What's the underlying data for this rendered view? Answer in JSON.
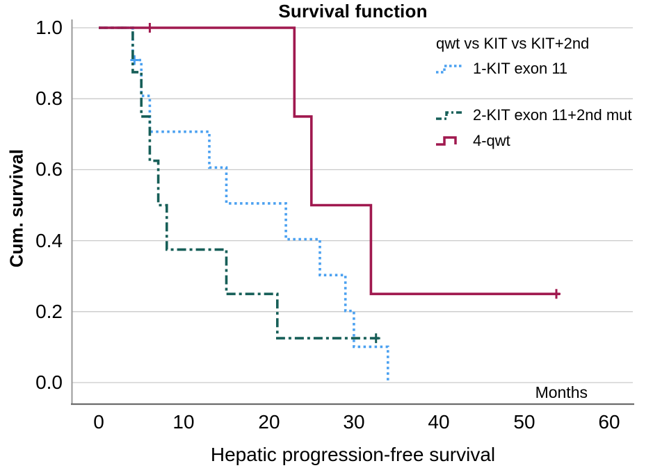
{
  "title": "Survival function",
  "axes": {
    "y_label": "Cum. survival",
    "x_label": "Hepatic progression-free survival",
    "x_unit_label": "Months",
    "y_ticks": [
      "1.0",
      "0.8",
      "0.6",
      "0.4",
      "0.2",
      "0.0"
    ],
    "x_ticks": [
      "0",
      "10",
      "20",
      "30",
      "40",
      "50",
      "60"
    ]
  },
  "legend": {
    "title": "qwt vs KIT vs KIT+2nd",
    "items": [
      "1-KIT exon 11",
      "2-KIT exon 11+2nd mut",
      "4-qwt"
    ]
  },
  "colors": {
    "series_kit_exon11": "#4aa0f0",
    "series_kit_exon11_2nd": "#175f58",
    "series_qwt": "#a0194f",
    "gridline": "#c9c9c9",
    "y_spine": "#9a9a9a",
    "x_spine": "#6b6b6b"
  },
  "chart_data": {
    "type": "line",
    "subtype": "kaplan-meier-step",
    "title": "Survival function",
    "xlabel": "Hepatic progression-free survival",
    "ylabel": "Cum. survival",
    "x_unit": "Months",
    "xlim": [
      0,
      63
    ],
    "ylim": [
      0.0,
      1.0
    ],
    "x_ticks": [
      0,
      10,
      20,
      30,
      40,
      50,
      60
    ],
    "y_ticks": [
      1.0,
      0.8,
      0.6,
      0.4,
      0.2,
      0.0
    ],
    "grid": "horizontal",
    "legend_position": "inside-top-right",
    "series": [
      {
        "label": "1-KIT exon 11",
        "color": "#4aa0f0",
        "line_style": "dotted",
        "points": [
          [
            0,
            1.0
          ],
          [
            4,
            1.0
          ],
          [
            4,
            0.909
          ],
          [
            5,
            0.909
          ],
          [
            5,
            0.808
          ],
          [
            6,
            0.808
          ],
          [
            6,
            0.707
          ],
          [
            13,
            0.707
          ],
          [
            13,
            0.606
          ],
          [
            15,
            0.606
          ],
          [
            15,
            0.505
          ],
          [
            22,
            0.505
          ],
          [
            22,
            0.404
          ],
          [
            26,
            0.404
          ],
          [
            26,
            0.303
          ],
          [
            29,
            0.303
          ],
          [
            29,
            0.202
          ],
          [
            30,
            0.202
          ],
          [
            30,
            0.101
          ],
          [
            34,
            0.101
          ],
          [
            34,
            0.0
          ]
        ],
        "censored": [
          [
            4.2,
            0.909
          ]
        ]
      },
      {
        "label": "2-KIT exon 11+2nd mut",
        "color": "#175f58",
        "line_style": "dash-dot",
        "points": [
          [
            0,
            1.0
          ],
          [
            4,
            1.0
          ],
          [
            4,
            0.875
          ],
          [
            5,
            0.875
          ],
          [
            5,
            0.75
          ],
          [
            6,
            0.75
          ],
          [
            6,
            0.625
          ],
          [
            7,
            0.625
          ],
          [
            7,
            0.5
          ],
          [
            8,
            0.5
          ],
          [
            8,
            0.375
          ],
          [
            15,
            0.375
          ],
          [
            15,
            0.25
          ],
          [
            21,
            0.25
          ],
          [
            21,
            0.125
          ],
          [
            33,
            0.125
          ]
        ],
        "censored": [
          [
            32.6,
            0.125
          ]
        ]
      },
      {
        "label": "4-qwt",
        "color": "#a0194f",
        "line_style": "solid",
        "points": [
          [
            0,
            1.0
          ],
          [
            23,
            1.0
          ],
          [
            23,
            0.75
          ],
          [
            25,
            0.75
          ],
          [
            25,
            0.5
          ],
          [
            32,
            0.5
          ],
          [
            32,
            0.25
          ],
          [
            54.2,
            0.25
          ]
        ],
        "censored": [
          [
            6,
            1.0
          ],
          [
            53.8,
            0.25
          ]
        ]
      }
    ]
  }
}
